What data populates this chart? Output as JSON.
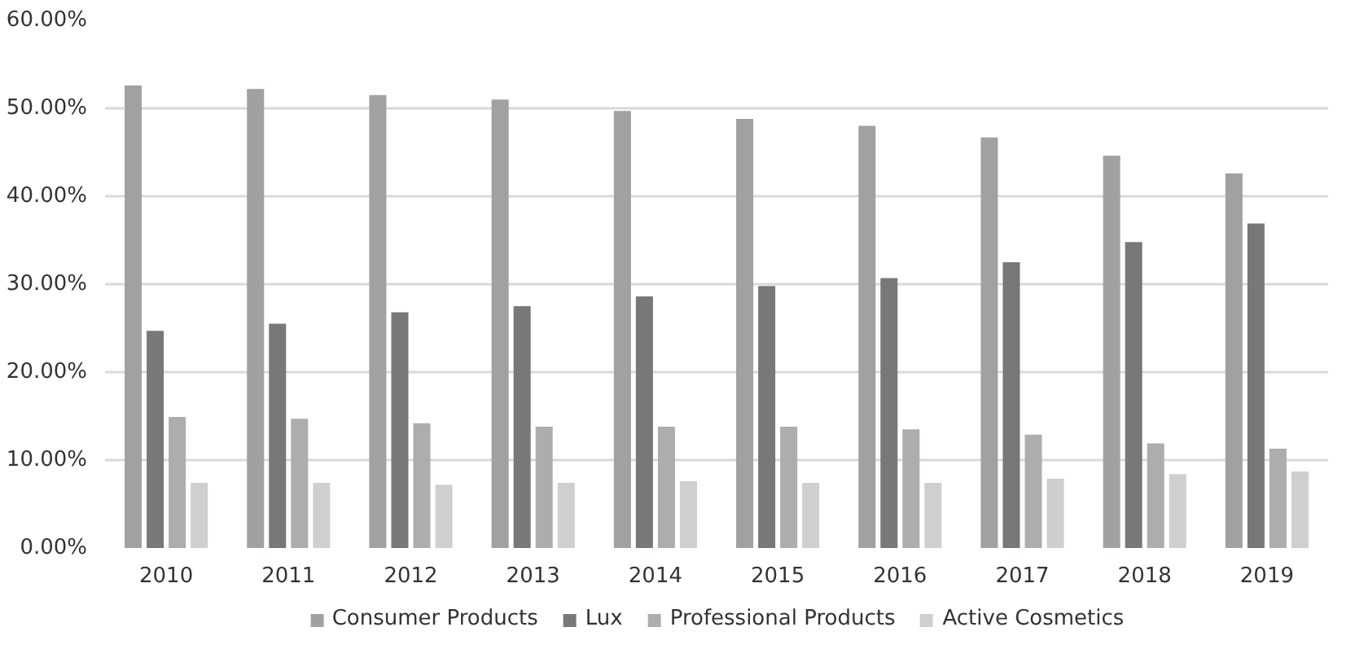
{
  "chart_data": {
    "type": "bar",
    "categories": [
      "2010",
      "2011",
      "2012",
      "2013",
      "2014",
      "2015",
      "2016",
      "2017",
      "2018",
      "2019"
    ],
    "series": [
      {
        "name": "Consumer Products",
        "color": "#a0a1a3",
        "values": [
          52.6,
          52.2,
          51.5,
          51.0,
          49.7,
          48.8,
          48.0,
          46.7,
          44.6,
          42.6
        ]
      },
      {
        "name": "Lux",
        "color": "#77787a",
        "values": [
          24.7,
          25.5,
          26.8,
          27.5,
          28.6,
          29.8,
          30.7,
          32.5,
          34.8,
          36.9
        ]
      },
      {
        "name": "Professional Products",
        "color": "#adadaf",
        "values": [
          14.9,
          14.7,
          14.2,
          13.8,
          13.8,
          13.8,
          13.5,
          12.9,
          11.9,
          11.3
        ]
      },
      {
        "name": "Active Cosmetics",
        "color": "#cfcfd0",
        "values": [
          7.4,
          7.4,
          7.2,
          7.4,
          7.6,
          7.4,
          7.4,
          7.9,
          8.4,
          8.7
        ]
      }
    ],
    "ylim": [
      0,
      60
    ],
    "yticks": [
      {
        "value": 0,
        "label": "0.00%"
      },
      {
        "value": 10,
        "label": "10.00%"
      },
      {
        "value": 20,
        "label": "20.00%"
      },
      {
        "value": 30,
        "label": "30.00%"
      },
      {
        "value": 40,
        "label": "40.00%"
      },
      {
        "value": 50,
        "label": "50.00%"
      },
      {
        "value": 60,
        "label": "60.00%"
      }
    ],
    "grid": "y",
    "legend": "bottom"
  }
}
